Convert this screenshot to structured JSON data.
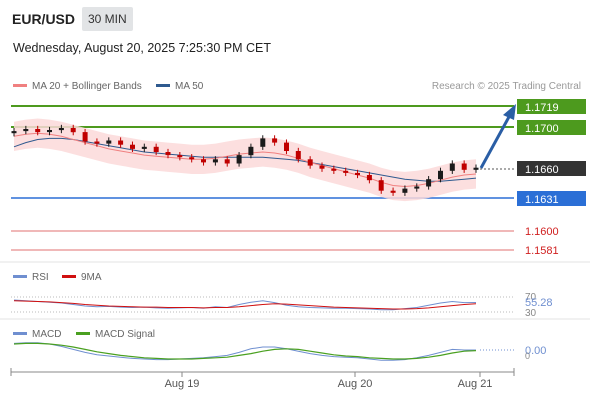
{
  "header": {
    "symbol": "EUR/USD",
    "interval": "30 MIN",
    "datetime": "Wednesday, August 20, 2025 7:25:30 PM CET"
  },
  "legend": {
    "ma20": "MA 20 + Bollinger Bands",
    "ma50": "MA 50",
    "credit": "Research © 2025 Trading Central"
  },
  "colors": {
    "resistance": "#4d9a1e",
    "support": "#2b6fd6",
    "ma20": "#f08080",
    "ma50": "#2f5a8f",
    "bands": "#fbd9d9",
    "candle": "#c00000",
    "last": "#333333",
    "rsi": "#6f8fd0",
    "rsi_ma": "#d01010",
    "macd": "#6f8fd0",
    "macd_signal": "#4aa020",
    "arrow": "#2a5ea5"
  },
  "price_levels": [
    {
      "value": "1.1719",
      "type": "resistance"
    },
    {
      "value": "1.1700",
      "type": "resistance"
    },
    {
      "value": "1.1660",
      "type": "last"
    },
    {
      "value": "1.1631",
      "type": "support"
    },
    {
      "value": "1.1600",
      "type": "minor"
    },
    {
      "value": "1.1581",
      "type": "minor"
    }
  ],
  "rsi_panel": {
    "label": "RSI",
    "ma_label": "9MA",
    "value": "55.28",
    "upper": "70",
    "lower": "30"
  },
  "macd_panel": {
    "label": "MACD",
    "signal_label": "MACD Signal",
    "value": "0.00",
    "tick": "0"
  },
  "time_axis": [
    "Aug 19",
    "Aug 20",
    "Aug 21"
  ],
  "chart_data": {
    "type": "line",
    "instrument": "EUR/USD",
    "timeframe": "30 MIN",
    "ylim": [
      1.157,
      1.173
    ],
    "price": [
      1.1695,
      1.1697,
      1.1694,
      1.1696,
      1.1698,
      1.1694,
      1.1685,
      1.1683,
      1.1686,
      1.1682,
      1.1678,
      1.168,
      1.1675,
      1.1672,
      1.167,
      1.1668,
      1.1665,
      1.1668,
      1.1664,
      1.1672,
      1.168,
      1.1688,
      1.1684,
      1.1676,
      1.1668,
      1.1662,
      1.1659,
      1.1657,
      1.1655,
      1.1653,
      1.1648,
      1.1638,
      1.1636,
      1.164,
      1.1642,
      1.1649,
      1.1657,
      1.1664,
      1.1658,
      1.166
    ],
    "ma20": [
      1.169,
      1.1692,
      1.1693,
      1.1692,
      1.169,
      1.1687,
      1.1684,
      1.1681,
      1.1678,
      1.1676,
      1.1674,
      1.1672,
      1.1671,
      1.167,
      1.1669,
      1.1668,
      1.1668,
      1.1669,
      1.1671,
      1.1673,
      1.1674,
      1.1675,
      1.1674,
      1.1672,
      1.1669,
      1.1665,
      1.1662,
      1.1659,
      1.1656,
      1.1653,
      1.165,
      1.1646,
      1.1643,
      1.1642,
      1.1643,
      1.1645,
      1.1648,
      1.1651,
      1.1653,
      1.1654
    ],
    "ma50": [
      1.168,
      1.1684,
      1.1687,
      1.1688,
      1.1688,
      1.1687,
      1.1685,
      1.1683,
      1.1681,
      1.1679,
      1.1677,
      1.1675,
      1.1674,
      1.1673,
      1.1672,
      1.1671,
      1.167,
      1.167,
      1.167,
      1.167,
      1.167,
      1.167,
      1.1669,
      1.1668,
      1.1667,
      1.1665,
      1.1663,
      1.1661,
      1.1659,
      1.1657,
      1.1655,
      1.1653,
      1.1651,
      1.1649,
      1.1648,
      1.1647,
      1.1647,
      1.1648,
      1.1649,
      1.165
    ],
    "rsi": [
      62,
      60,
      58,
      56,
      54,
      50,
      46,
      44,
      45,
      43,
      42,
      43,
      41,
      40,
      41,
      42,
      40,
      44,
      42,
      50,
      56,
      60,
      55,
      48,
      44,
      42,
      41,
      40,
      40,
      39,
      38,
      36,
      36,
      39,
      42,
      48,
      54,
      58,
      55,
      55.28
    ],
    "rsi_ma": [
      60,
      59,
      58,
      57,
      55,
      53,
      50,
      48,
      46,
      45,
      44,
      43,
      43,
      42,
      42,
      42,
      41,
      42,
      42,
      44,
      47,
      50,
      52,
      51,
      49,
      47,
      45,
      43,
      42,
      41,
      40,
      39,
      38,
      38,
      39,
      41,
      44,
      47,
      50,
      52
    ],
    "macd": [
      0.0011,
      0.0012,
      0.0012,
      0.001,
      0.0006,
      0.0001,
      -0.0004,
      -0.0008,
      -0.001,
      -0.0012,
      -0.0014,
      -0.0015,
      -0.0016,
      -0.0016,
      -0.0015,
      -0.0014,
      -0.0013,
      -0.0011,
      -0.0009,
      -0.0004,
      0.0002,
      0.0005,
      0.0005,
      0.0002,
      -0.0002,
      -0.0006,
      -0.0009,
      -0.0011,
      -0.0012,
      -0.0013,
      -0.0015,
      -0.0017,
      -0.0017,
      -0.0016,
      -0.0013,
      -0.0009,
      -0.0004,
      0.0001,
      0.0,
      0.0
    ],
    "macd_signal": [
      0.001,
      0.0011,
      0.0011,
      0.001,
      0.0008,
      0.0005,
      0.0001,
      -0.0003,
      -0.0006,
      -0.0009,
      -0.0011,
      -0.0013,
      -0.0014,
      -0.0015,
      -0.0015,
      -0.0015,
      -0.0014,
      -0.0013,
      -0.0012,
      -0.0009,
      -0.0006,
      -0.0002,
      0.0001,
      0.0002,
      0.0001,
      -0.0002,
      -0.0005,
      -0.0008,
      -0.001,
      -0.0011,
      -0.0013,
      -0.0014,
      -0.0015,
      -0.0015,
      -0.0014,
      -0.0012,
      -0.0009,
      -0.0005,
      -0.0002,
      -0.0001
    ],
    "rsi_ylim": [
      20,
      80
    ],
    "macd_ylim": [
      -0.0025,
      0.0025
    ],
    "projection_target": 1.1719
  }
}
